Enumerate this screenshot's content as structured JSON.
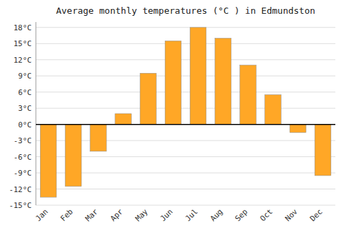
{
  "chart_data": {
    "type": "bar",
    "title": "Average monthly temperatures (°C ) in Edmundston",
    "categories": [
      "Jan",
      "Feb",
      "Mar",
      "Apr",
      "May",
      "Jun",
      "Jul",
      "Aug",
      "Sep",
      "Oct",
      "Nov",
      "Dec"
    ],
    "values": [
      -13.5,
      -11.5,
      -5.0,
      2.0,
      9.5,
      15.5,
      18.0,
      16.0,
      11.0,
      5.5,
      -1.5,
      -9.5
    ],
    "color": "#FFA726",
    "ylim": [
      -15,
      19
    ],
    "yticks": [
      {
        "value": -15,
        "label": "-15°C"
      },
      {
        "value": -12,
        "label": "-12°C"
      },
      {
        "value": -9,
        "label": "-9°C"
      },
      {
        "value": -6,
        "label": "-6°C"
      },
      {
        "value": -3,
        "label": "-3°C"
      },
      {
        "value": 0,
        "label": "0°C"
      },
      {
        "value": 3,
        "label": "3°C"
      },
      {
        "value": 6,
        "label": "6°C"
      },
      {
        "value": 9,
        "label": "9°C"
      },
      {
        "value": 12,
        "label": "12°C"
      },
      {
        "value": 15,
        "label": "15°C"
      },
      {
        "value": 18,
        "label": "18°C"
      }
    ],
    "grid": true
  }
}
